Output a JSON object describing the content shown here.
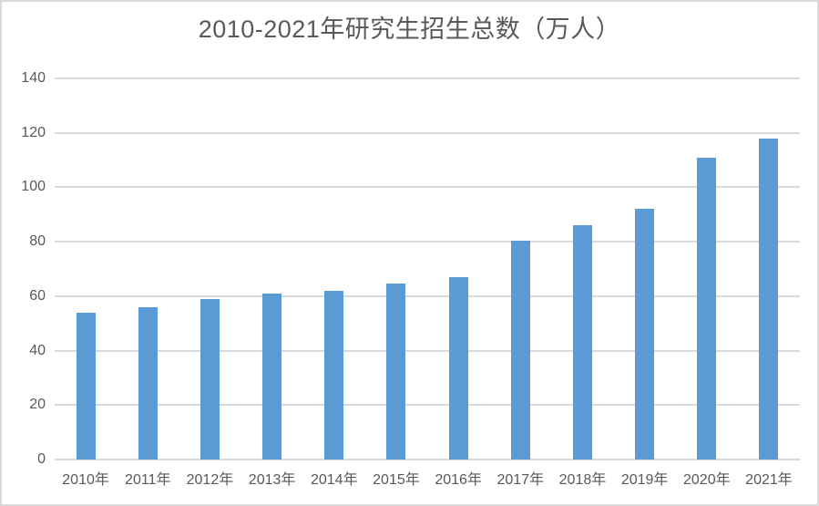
{
  "chart": {
    "title": "2010-2021年研究生招生总数（万人）"
  },
  "chart_data": {
    "type": "bar",
    "title": "2010-2021年研究生招生总数（万人）",
    "categories": [
      "2010年",
      "2011年",
      "2012年",
      "2013年",
      "2014年",
      "2015年",
      "2016年",
      "2017年",
      "2018年",
      "2019年",
      "2020年",
      "2021年"
    ],
    "values": [
      54,
      56,
      59,
      61,
      62,
      64.5,
      67,
      80.5,
      86,
      92,
      111,
      118
    ],
    "xlabel": "",
    "ylabel": "",
    "ylim": [
      0,
      140
    ],
    "ytick_interval": 20,
    "ytick_labels": [
      "0",
      "20",
      "40",
      "60",
      "80",
      "100",
      "120",
      "140"
    ],
    "grid": true,
    "legend": false,
    "colors": {
      "bar": "#5B9BD5",
      "gridline": "#D9D9D9",
      "axis_line": "#D9D9D9",
      "text": "#595959",
      "title_text": "#595959",
      "chart_border": "#D9D9D9",
      "background": "#FFFFFF"
    }
  }
}
